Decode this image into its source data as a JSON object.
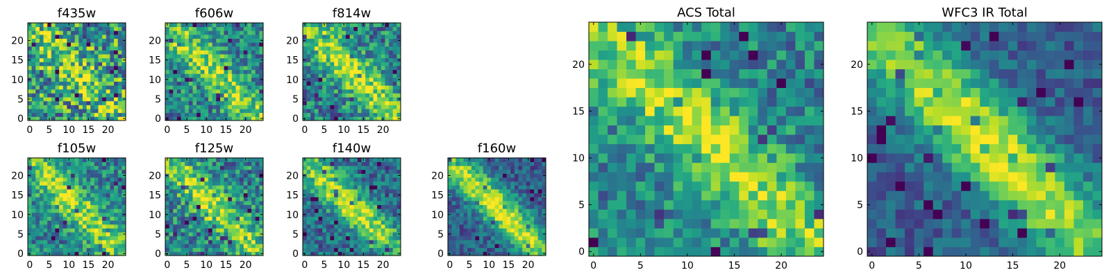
{
  "chart_data": [
    {
      "type": "heatmap",
      "title": "f435w",
      "xticks": [
        "0",
        "5",
        "10",
        "15",
        "20"
      ],
      "yticks": [
        "0",
        "5",
        "10",
        "15",
        "20"
      ],
      "xlim": [
        0,
        25
      ],
      "ylim": [
        0,
        25
      ],
      "colormap": "viridis",
      "grid": false
    },
    {
      "type": "heatmap",
      "title": "f606w",
      "xticks": [
        "0",
        "5",
        "10",
        "15",
        "20"
      ],
      "yticks": [
        "0",
        "5",
        "10",
        "15",
        "20"
      ],
      "xlim": [
        0,
        25
      ],
      "ylim": [
        0,
        25
      ],
      "colormap": "viridis",
      "grid": false
    },
    {
      "type": "heatmap",
      "title": "f814w",
      "xticks": [
        "0",
        "5",
        "10",
        "15",
        "20"
      ],
      "yticks": [
        "0",
        "5",
        "10",
        "15",
        "20"
      ],
      "xlim": [
        0,
        25
      ],
      "ylim": [
        0,
        25
      ],
      "colormap": "viridis",
      "grid": false
    },
    {
      "type": "heatmap",
      "title": "f105w",
      "xticks": [
        "0",
        "5",
        "10",
        "15",
        "20"
      ],
      "yticks": [
        "0",
        "5",
        "10",
        "15",
        "20"
      ],
      "xlim": [
        0,
        25
      ],
      "ylim": [
        0,
        25
      ],
      "colormap": "viridis",
      "grid": false
    },
    {
      "type": "heatmap",
      "title": "f125w",
      "xticks": [
        "0",
        "5",
        "10",
        "15",
        "20"
      ],
      "yticks": [
        "0",
        "5",
        "10",
        "15",
        "20"
      ],
      "xlim": [
        0,
        25
      ],
      "ylim": [
        0,
        25
      ],
      "colormap": "viridis",
      "grid": false
    },
    {
      "type": "heatmap",
      "title": "f140w",
      "xticks": [
        "0",
        "5",
        "10",
        "15",
        "20"
      ],
      "yticks": [
        "0",
        "5",
        "10",
        "15",
        "20"
      ],
      "xlim": [
        0,
        25
      ],
      "ylim": [
        0,
        25
      ],
      "colormap": "viridis",
      "grid": false
    },
    {
      "type": "heatmap",
      "title": "f160w",
      "xticks": [
        "0",
        "5",
        "10",
        "15",
        "20"
      ],
      "yticks": [
        "0",
        "5",
        "10",
        "15",
        "20"
      ],
      "xlim": [
        0,
        25
      ],
      "ylim": [
        0,
        25
      ],
      "colormap": "viridis",
      "grid": false
    },
    {
      "type": "heatmap",
      "title": "ACS Total",
      "xticks": [
        "0",
        "5",
        "10",
        "15",
        "20"
      ],
      "yticks": [
        "0",
        "5",
        "10",
        "15",
        "20"
      ],
      "xlim": [
        0,
        25
      ],
      "ylim": [
        0,
        25
      ],
      "colormap": "viridis",
      "grid": false
    },
    {
      "type": "heatmap",
      "title": "WFC3 IR Total",
      "xticks": [
        "0",
        "5",
        "10",
        "15",
        "20"
      ],
      "yticks": [
        "0",
        "5",
        "10",
        "15",
        "20"
      ],
      "xlim": [
        0,
        25
      ],
      "ylim": [
        0,
        25
      ],
      "colormap": "viridis",
      "grid": false
    }
  ]
}
